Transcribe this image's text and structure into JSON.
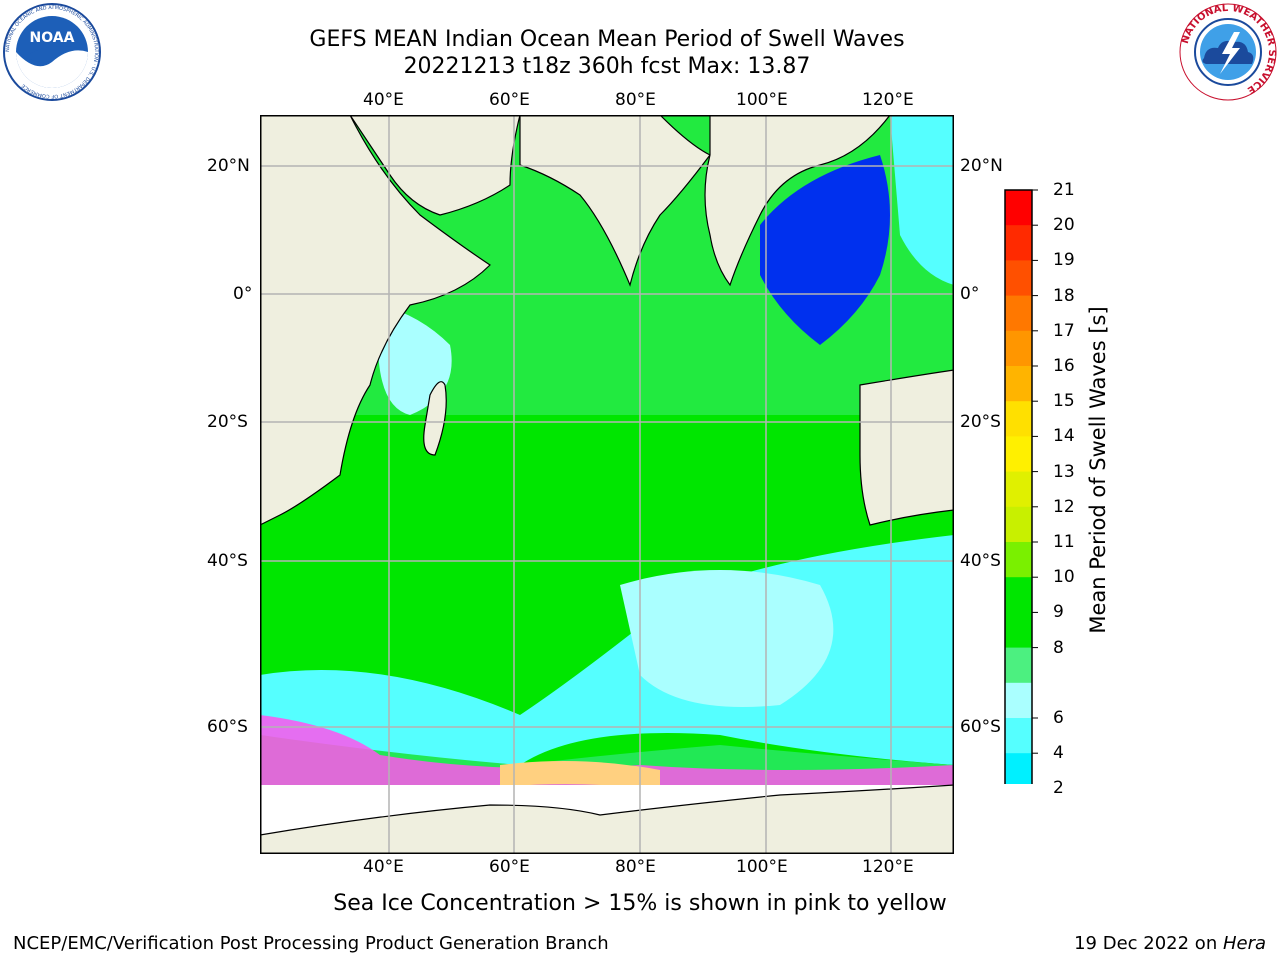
{
  "header": {
    "title_line1": "GEFS MEAN Indian Ocean Mean Period of Swell Waves",
    "title_line2": "20221213 t18z 360h fcst   Max: 13.87"
  },
  "logos": {
    "left_icon": "noaa-logo-icon",
    "right_icon": "nws-logo-icon",
    "left_ring_text": "NATIONAL OCEANIC AND ATMOSPHERIC ADMINISTRATION · U.S. DEPARTMENT OF COMMERCE",
    "left_center_text": "NOAA",
    "right_ring_text": "NATIONAL WEATHER SERVICE"
  },
  "map": {
    "lon_labels": [
      "40°E",
      "60°E",
      "80°E",
      "100°E",
      "120°E"
    ],
    "lat_labels": [
      "20°N",
      "0°",
      "20°S",
      "40°S",
      "60°S"
    ],
    "lon_range": [
      20,
      130
    ],
    "lat_range": [
      -75,
      30
    ],
    "gridlines": true,
    "colors": {
      "land": "#efefdf",
      "sea_ice_zone": "#ffffff",
      "gridline": "#b4b4b4"
    }
  },
  "colorbar": {
    "label": "Mean Period of Swell Waves [s]",
    "ticks": [
      "21",
      "20",
      "19",
      "18",
      "17",
      "16",
      "15",
      "14",
      "13",
      "12",
      "11",
      "10",
      "9",
      "8",
      "6",
      "4",
      "2"
    ],
    "colors": [
      "#ff0000",
      "#ff2a00",
      "#ff5000",
      "#ff7800",
      "#ff9600",
      "#ffb400",
      "#ffe000",
      "#fff000",
      "#e0f000",
      "#c8f000",
      "#7af000",
      "#00e600",
      "#00e600",
      "#4cf080",
      "#aaffff",
      "#55ffff",
      "#00f0ff",
      "#00c8ff",
      "#0064ff"
    ],
    "extend_color": "#0000ee",
    "extend": "min"
  },
  "caption": "Sea Ice Concentration > 15% is shown in pink to yellow",
  "footer": {
    "left": "NCEP/EMC/Verification Post Processing Product Generation Branch",
    "right_date": "19 Dec 2022 on ",
    "right_machine": "Hera"
  }
}
